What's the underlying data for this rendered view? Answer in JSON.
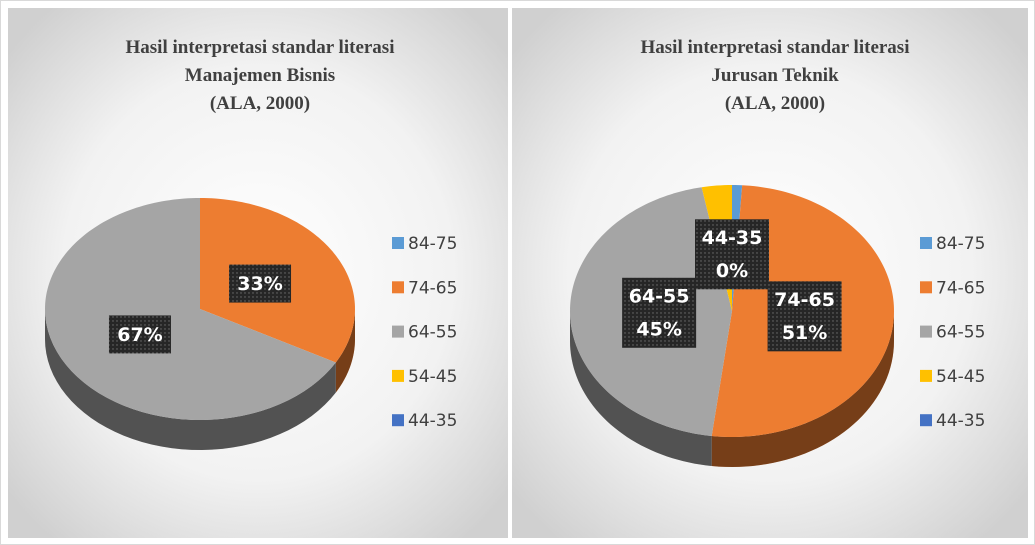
{
  "chart_data": [
    {
      "type": "pie",
      "title": [
        "Hasil interpretasi standar literasi",
        "Manajemen Bisnis",
        "(ALA, 2000)"
      ],
      "categories": [
        "84-75",
        "74-65",
        "64-55",
        "54-45",
        "44-35"
      ],
      "values": [
        0,
        33,
        67,
        0,
        0
      ],
      "value_labels": [
        null,
        "33%",
        "67%",
        null,
        null
      ],
      "colors": [
        "#5b9bd5",
        "#ed7d31",
        "#a5a5a5",
        "#ffc000",
        "#4472c4"
      ],
      "show_category_in_label": false,
      "legend": "right"
    },
    {
      "type": "pie",
      "title": [
        "Hasil interpretasi standar literasi",
        "Jurusan Teknik",
        "(ALA, 2000)"
      ],
      "categories": [
        "84-75",
        "74-65",
        "64-55",
        "54-45",
        "44-35"
      ],
      "values": [
        1,
        51,
        45,
        3,
        0
      ],
      "value_labels": [
        null,
        "51%",
        "45%",
        null,
        "0%"
      ],
      "colors": [
        "#5b9bd5",
        "#ed7d31",
        "#a5a5a5",
        "#ffc000",
        "#4472c4"
      ],
      "show_category_in_label": true,
      "legend": "right"
    }
  ]
}
